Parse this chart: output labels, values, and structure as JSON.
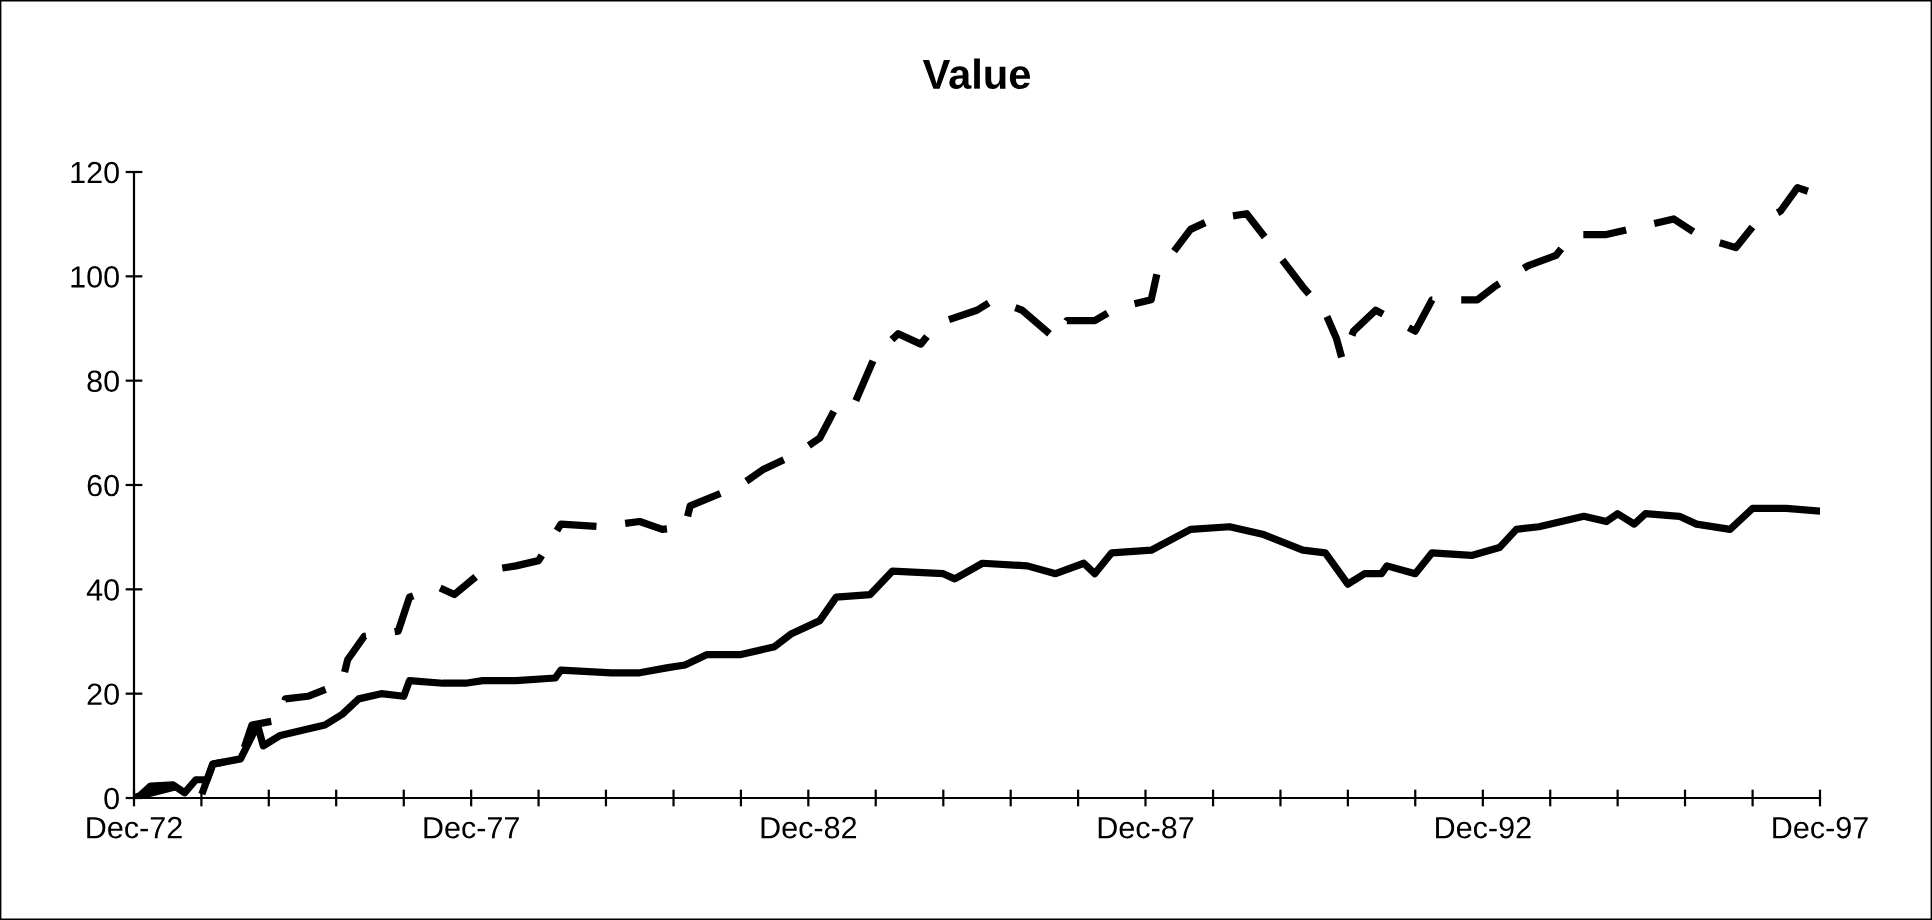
{
  "chart_data": {
    "type": "line",
    "title": "Value",
    "xlim": [
      "1972-12",
      "1997-12"
    ],
    "xticks": [
      {
        "value": "1972-12",
        "label": "Dec-72"
      },
      {
        "value": "1973-12",
        "label": null
      },
      {
        "value": "1974-12",
        "label": null
      },
      {
        "value": "1975-12",
        "label": null
      },
      {
        "value": "1976-12",
        "label": null
      },
      {
        "value": "1977-12",
        "label": "Dec-77"
      },
      {
        "value": "1978-12",
        "label": null
      },
      {
        "value": "1979-12",
        "label": null
      },
      {
        "value": "1980-12",
        "label": null
      },
      {
        "value": "1981-12",
        "label": null
      },
      {
        "value": "1982-12",
        "label": "Dec-82"
      },
      {
        "value": "1983-12",
        "label": null
      },
      {
        "value": "1984-12",
        "label": null
      },
      {
        "value": "1985-12",
        "label": null
      },
      {
        "value": "1986-12",
        "label": null
      },
      {
        "value": "1987-12",
        "label": "Dec-87"
      },
      {
        "value": "1988-12",
        "label": null
      },
      {
        "value": "1989-12",
        "label": null
      },
      {
        "value": "1990-12",
        "label": null
      },
      {
        "value": "1991-12",
        "label": null
      },
      {
        "value": "1992-12",
        "label": "Dec-92"
      },
      {
        "value": "1993-12",
        "label": null
      },
      {
        "value": "1994-12",
        "label": null
      },
      {
        "value": "1995-12",
        "label": null
      },
      {
        "value": "1996-12",
        "label": null
      },
      {
        "value": "1997-12",
        "label": "Dec-97"
      }
    ],
    "ylim": [
      0,
      120
    ],
    "yticks": [
      0,
      20,
      40,
      60,
      80,
      100,
      120
    ],
    "grid": false,
    "legend": false,
    "series": [
      {
        "color": "#000000",
        "line_style": "dashed",
        "x": [
          "1972-12",
          "1973-01",
          "1973-08",
          "1973-12",
          "1974-02",
          "1974-07",
          "1974-09",
          "1975-02",
          "1975-03",
          "1975-07",
          "1976-01",
          "1976-02",
          "1976-05",
          "1976-11",
          "1977-01",
          "1977-06",
          "1977-09",
          "1978-02",
          "1978-08",
          "1978-12",
          "1979-04",
          "1979-11",
          "1980-06",
          "1980-10",
          "1981-02",
          "1981-03",
          "1981-12",
          "1982-04",
          "1982-10",
          "1983-02",
          "1983-05",
          "1983-08",
          "1983-12",
          "1984-04",
          "1984-08",
          "1984-11",
          "1985-06",
          "1985-09",
          "1986-02",
          "1986-08",
          "1986-10",
          "1987-03",
          "1987-07",
          "1988-01",
          "1988-02",
          "1988-08",
          "1988-12",
          "1989-06",
          "1989-11",
          "1990-04",
          "1990-08",
          "1990-10",
          "1990-11",
          "1991-01",
          "1991-05",
          "1991-12",
          "1992-03",
          "1992-11",
          "1993-02",
          "1993-08",
          "1994-01",
          "1994-04",
          "1994-10",
          "1995-04",
          "1995-10",
          "1996-03",
          "1996-09",
          "1996-12",
          "1997-05",
          "1997-08",
          "1997-12"
        ],
        "values": [
          0,
          0.4,
          2.3,
          0.5,
          6.5,
          7.5,
          14,
          15,
          19,
          19.5,
          22,
          26.5,
          31,
          32,
          38.5,
          40.5,
          39,
          43.5,
          44.5,
          45.5,
          52.5,
          52,
          53,
          51.5,
          52,
          56,
          60,
          63,
          66,
          69,
          75,
          75,
          85,
          89,
          87,
          91,
          93.5,
          95.5,
          93.5,
          88,
          91.5,
          91.5,
          94,
          95.5,
          100.5,
          109,
          111,
          112,
          105,
          98,
          93,
          88,
          84,
          89.5,
          93.5,
          89.5,
          95.5,
          95.5,
          98,
          102,
          104,
          108,
          108,
          109.5,
          111,
          107.5,
          105.5,
          109.5,
          112.5,
          117,
          115.5
        ]
      },
      {
        "color": "#000000",
        "line_style": "solid",
        "x": [
          "1972-12",
          "1973-01",
          "1973-03",
          "1973-07",
          "1973-09",
          "1973-11",
          "1974-01",
          "1974-02",
          "1974-07",
          "1974-10",
          "1974-11",
          "1975-02",
          "1975-06",
          "1975-10",
          "1976-01",
          "1976-04",
          "1976-08",
          "1976-12",
          "1977-01",
          "1977-07",
          "1977-11",
          "1978-02",
          "1978-08",
          "1979-03",
          "1979-04",
          "1980-01",
          "1980-06",
          "1980-11",
          "1981-02",
          "1981-06",
          "1981-12",
          "1982-06",
          "1982-09",
          "1983-02",
          "1983-05",
          "1983-11",
          "1984-03",
          "1984-12",
          "1985-02",
          "1985-07",
          "1986-03",
          "1986-08",
          "1987-01",
          "1987-03",
          "1987-06",
          "1988-01",
          "1988-08",
          "1989-03",
          "1989-09",
          "1990-04",
          "1990-08",
          "1990-12",
          "1991-03",
          "1991-06",
          "1991-07",
          "1991-12",
          "1992-03",
          "1992-10",
          "1993-03",
          "1993-06",
          "1993-10",
          "1994-06",
          "1994-10",
          "1994-12",
          "1995-03",
          "1995-05",
          "1995-11",
          "1996-02",
          "1996-08",
          "1996-12",
          "1997-06",
          "1997-12"
        ],
        "values": [
          0,
          0.4,
          2.3,
          2.5,
          1,
          3.5,
          3.5,
          6.5,
          7.5,
          14,
          10,
          12,
          13,
          14,
          16,
          19,
          20,
          19.5,
          22.5,
          22,
          22,
          22.5,
          22.5,
          23,
          24.5,
          24,
          24,
          25,
          25.5,
          27.5,
          27.5,
          29,
          31.5,
          34,
          38.5,
          39,
          43.5,
          43,
          42,
          45,
          44.5,
          43,
          45,
          43,
          47,
          47.5,
          51.5,
          52,
          50.5,
          47.5,
          47,
          41,
          43,
          43,
          44.5,
          43,
          47,
          46.5,
          48,
          51.5,
          52,
          54,
          53,
          54.5,
          52.5,
          54.5,
          54,
          52.5,
          51.5,
          55.5,
          55.5,
          55
        ]
      }
    ]
  }
}
